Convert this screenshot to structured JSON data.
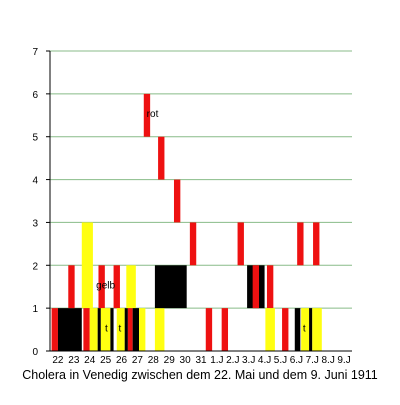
{
  "chart_data": {
    "type": "bar",
    "title": "Cholera in Venedig zwischen dem 22. Mai und dem 9. Juni 1911",
    "xlabel": "",
    "ylabel": "",
    "ylim": [
      0,
      7
    ],
    "y_ticks": [
      "0",
      "1",
      "2",
      "3",
      "4",
      "5",
      "6",
      "7"
    ],
    "grid": true,
    "categories": [
      "22",
      "23",
      "24",
      "25",
      "26",
      "27",
      "28",
      "29",
      "30",
      "31",
      "1.J",
      "2.J",
      "3.J",
      "4.J",
      "5.J",
      "6.J",
      "7.J",
      "8.J",
      "9.J"
    ],
    "colors": {
      "rot": "#ee1111",
      "gelb": "#ffff11",
      "schwarz": "#000000",
      "grid": "#88bb88"
    },
    "blocks": [
      {
        "color": "rot",
        "x0": 0.1,
        "x1": 0.5,
        "y0": 0,
        "y1": 1
      },
      {
        "color": "schwarz",
        "x0": 0.5,
        "x1": 2.0,
        "y0": 0,
        "y1": 1
      },
      {
        "color": "rot",
        "x0": 1.15,
        "x1": 1.55,
        "y0": 1,
        "y1": 2
      },
      {
        "color": "gelb",
        "x0": 2.0,
        "x1": 2.7,
        "y0": 1,
        "y1": 3
      },
      {
        "color": "rot",
        "x0": 2.1,
        "x1": 2.5,
        "y0": 0,
        "y1": 1
      },
      {
        "color": "gelb",
        "x0": 2.5,
        "x1": 3.0,
        "y0": 0,
        "y1": 1
      },
      {
        "color": "schwarz",
        "x0": 3.0,
        "x1": 3.2,
        "y0": 0,
        "y1": 1
      },
      {
        "color": "rot",
        "x0": 3.05,
        "x1": 3.45,
        "y0": 1,
        "y1": 2
      },
      {
        "color": "gelb",
        "x0": 3.2,
        "x1": 3.8,
        "y0": 0,
        "y1": 1
      },
      {
        "color": "schwarz",
        "x0": 3.8,
        "x1": 4.0,
        "y0": 0,
        "y1": 1
      },
      {
        "color": "rot",
        "x0": 4.0,
        "x1": 4.4,
        "y0": 1,
        "y1": 2
      },
      {
        "color": "gelb",
        "x0": 4.2,
        "x1": 4.7,
        "y0": 0,
        "y1": 1
      },
      {
        "color": "schwarz",
        "x0": 4.7,
        "x1": 4.9,
        "y0": 0,
        "y1": 1
      },
      {
        "color": "gelb",
        "x0": 4.8,
        "x1": 5.4,
        "y0": 1,
        "y1": 2
      },
      {
        "color": "rot",
        "x0": 4.9,
        "x1": 5.2,
        "y0": 0,
        "y1": 1
      },
      {
        "color": "schwarz",
        "x0": 5.2,
        "x1": 5.6,
        "y0": 0,
        "y1": 1
      },
      {
        "color": "gelb",
        "x0": 5.6,
        "x1": 6.0,
        "y0": 0,
        "y1": 1
      },
      {
        "color": "rot",
        "x0": 5.9,
        "x1": 6.3,
        "y0": 5,
        "y1": 6
      },
      {
        "color": "gelb",
        "x0": 6.6,
        "x1": 7.2,
        "y0": 0,
        "y1": 1
      },
      {
        "color": "rot",
        "x0": 6.8,
        "x1": 7.2,
        "y0": 4,
        "y1": 5
      },
      {
        "color": "schwarz",
        "x0": 6.6,
        "x1": 8.6,
        "y0": 1,
        "y1": 2
      },
      {
        "color": "rot",
        "x0": 7.8,
        "x1": 8.2,
        "y0": 3,
        "y1": 4
      },
      {
        "color": "rot",
        "x0": 8.8,
        "x1": 9.2,
        "y0": 2,
        "y1": 3
      },
      {
        "color": "rot",
        "x0": 9.8,
        "x1": 10.2,
        "y0": 0,
        "y1": 1
      },
      {
        "color": "rot",
        "x0": 10.8,
        "x1": 11.2,
        "y0": 0,
        "y1": 1
      },
      {
        "color": "rot",
        "x0": 11.8,
        "x1": 12.2,
        "y0": 2,
        "y1": 3
      },
      {
        "color": "schwarz",
        "x0": 12.4,
        "x1": 13.5,
        "y0": 1,
        "y1": 2
      },
      {
        "color": "rot",
        "x0": 12.75,
        "x1": 13.15,
        "y0": 1,
        "y1": 2
      },
      {
        "color": "rot",
        "x0": 13.65,
        "x1": 14.05,
        "y0": 1,
        "y1": 2
      },
      {
        "color": "gelb",
        "x0": 13.55,
        "x1": 14.15,
        "y0": 0,
        "y1": 1
      },
      {
        "color": "rot",
        "x0": 14.6,
        "x1": 15.0,
        "y0": 0,
        "y1": 1
      },
      {
        "color": "schwarz",
        "x0": 15.4,
        "x1": 15.75,
        "y0": 0,
        "y1": 1
      },
      {
        "color": "rot",
        "x0": 15.55,
        "x1": 15.95,
        "y0": 2,
        "y1": 3
      },
      {
        "color": "gelb",
        "x0": 15.8,
        "x1": 16.3,
        "y0": 0,
        "y1": 1
      },
      {
        "color": "schwarz",
        "x0": 16.3,
        "x1": 16.5,
        "y0": 0,
        "y1": 1
      },
      {
        "color": "rot",
        "x0": 16.55,
        "x1": 16.95,
        "y0": 2,
        "y1": 3
      },
      {
        "color": "gelb",
        "x0": 16.5,
        "x1": 17.1,
        "y0": 0,
        "y1": 1
      }
    ],
    "annotations": [
      {
        "text": "rot",
        "x": 6.45,
        "y": 5.55
      },
      {
        "text": "gelb",
        "x": 3.5,
        "y": 1.55
      },
      {
        "text": "t",
        "x": 3.55,
        "y": 0.55
      },
      {
        "text": "t",
        "x": 4.4,
        "y": 0.55
      },
      {
        "text": "t",
        "x": 16.0,
        "y": 0.55
      }
    ]
  }
}
